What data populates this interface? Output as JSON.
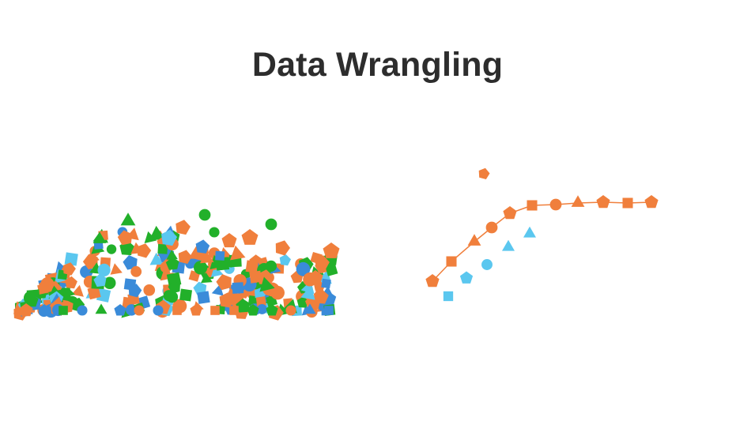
{
  "slide": {
    "title": "Data Wrangling"
  },
  "colors": {
    "title": "#2d2d2d",
    "orange": "#f07f3c",
    "green": "#22b02a",
    "blue": "#3a8bd9",
    "light_blue": "#5bc7ef",
    "background": "#ffffff"
  },
  "illustration": {
    "messy_pile": {
      "shape_types": [
        "pentagon",
        "circle",
        "triangle",
        "square"
      ],
      "color_names": [
        "orange",
        "green",
        "blue",
        "light_blue"
      ]
    },
    "tidy_series": {
      "orange_series_shape_order": [
        "pentagon",
        "square",
        "triangle",
        "circle",
        "pentagon",
        "square",
        "circle",
        "triangle",
        "pentagon",
        "square",
        "pentagon"
      ],
      "light_blue_series_shape_order": [
        "square",
        "pentagon",
        "circle",
        "triangle",
        "triangle"
      ]
    }
  }
}
